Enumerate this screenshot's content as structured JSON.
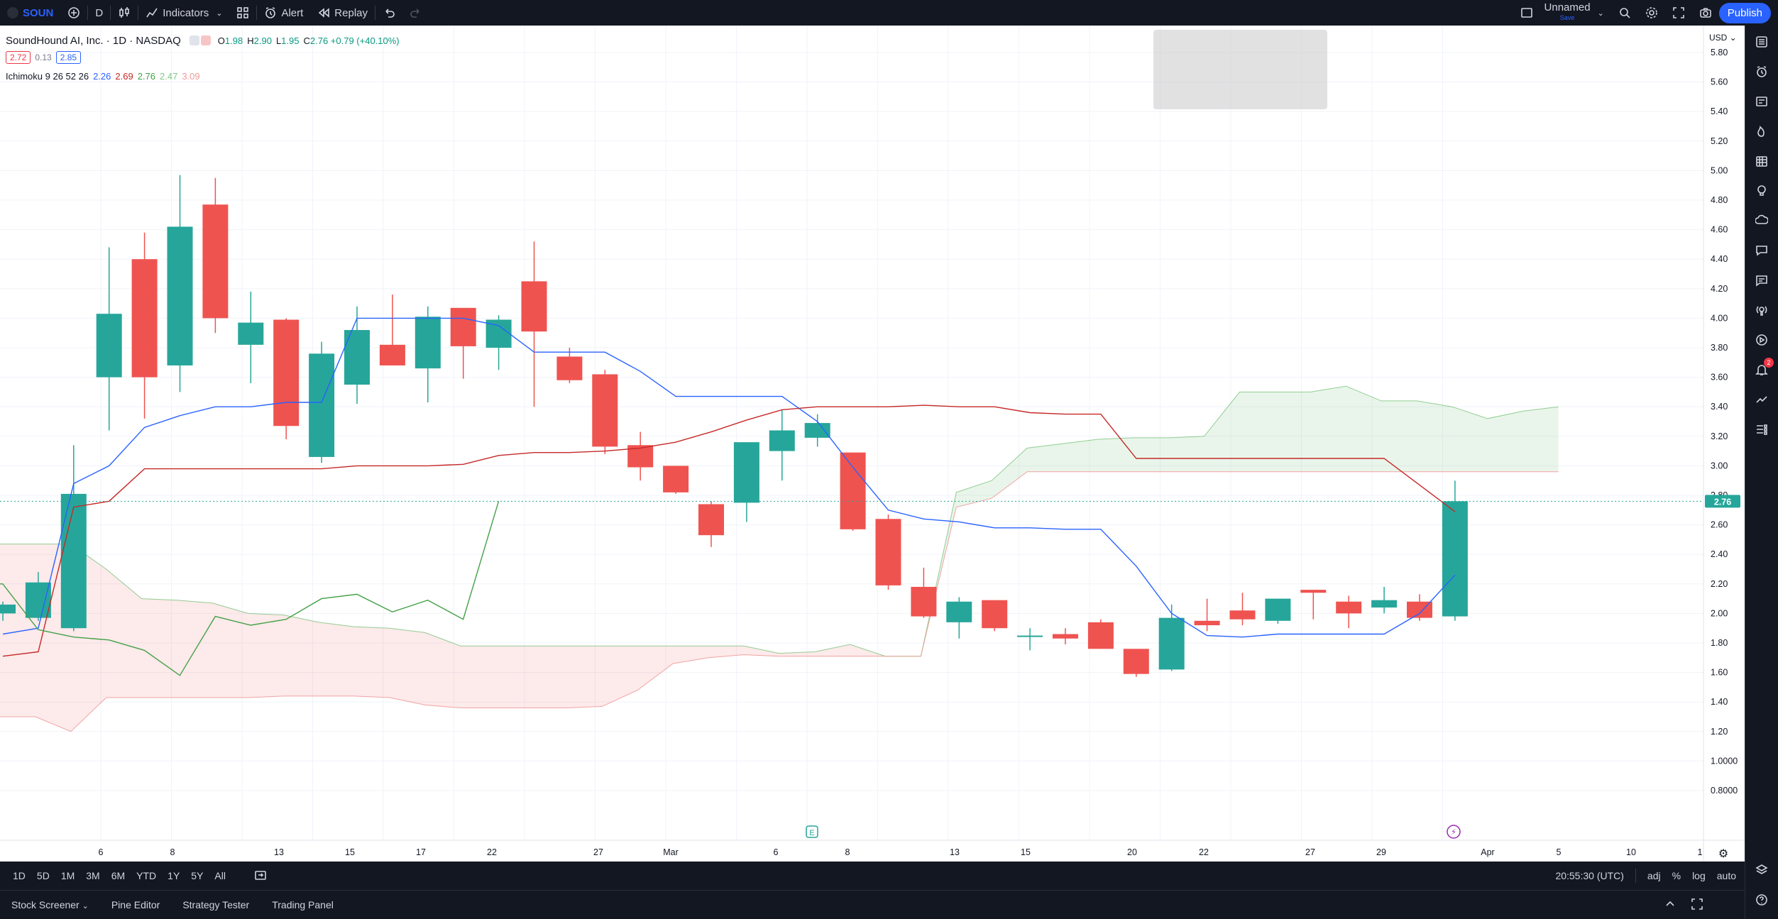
{
  "colors": {
    "bull": "#26a69a",
    "bear": "#ef5350",
    "tenkan": "#2962ff",
    "kijun": "#c62828",
    "chikou": "#43a047",
    "span_a": "#66bb6a",
    "span_b": "#ef9a9a",
    "accent": "#2962ff",
    "price_label_bg": "#26a69a"
  },
  "topbar": {
    "symbol": "SOUN",
    "interval": "D",
    "indicators_label": "Indicators",
    "alert_label": "Alert",
    "replay_label": "Replay",
    "layout_name": "Unnamed",
    "layout_sub": "Save",
    "publish_label": "Publish"
  },
  "legend": {
    "title": "SoundHound AI, Inc. · 1D · NASDAQ",
    "o_label": "O",
    "o_val": "1.98",
    "h_label": "H",
    "h_val": "2.90",
    "l_label": "L",
    "l_val": "1.95",
    "c_label": "C",
    "c_val": "2.76 +0.79 (+40.10%)",
    "bid": "2.72",
    "spread": "0.13",
    "ask": "2.85",
    "ichimoku_name": "Ichimoku 9 26 52 26",
    "ichi_values": [
      "2.26",
      "2.69",
      "2.76",
      "2.47",
      "3.09"
    ]
  },
  "price_axis": {
    "currency": "USD",
    "ticks": [
      "5.80",
      "5.60",
      "5.40",
      "5.20",
      "5.00",
      "4.80",
      "4.60",
      "4.40",
      "4.20",
      "4.00",
      "3.80",
      "3.60",
      "3.40",
      "3.20",
      "3.00",
      "2.80",
      "2.60",
      "2.40",
      "2.20",
      "2.00",
      "1.80",
      "1.60",
      "1.40",
      "1.20",
      "1.0000",
      "0.8000"
    ],
    "last_price_label": "2.76"
  },
  "time_axis": {
    "labels": [
      "6",
      "8",
      "13",
      "15",
      "17",
      "22",
      "27",
      "Mar",
      "6",
      "8",
      "13",
      "15",
      "20",
      "22",
      "27",
      "29",
      "Apr",
      "5",
      "10",
      "1"
    ]
  },
  "chart_data": {
    "type": "candlestick",
    "title": "SoundHound AI, Inc. · 1D · NASDAQ",
    "ylim": [
      0.7,
      5.9
    ],
    "candles": [
      {
        "o": 2.0,
        "h": 2.08,
        "l": 1.95,
        "c": 2.06
      },
      {
        "o": 1.97,
        "h": 2.28,
        "l": 1.95,
        "c": 2.21
      },
      {
        "o": 1.9,
        "h": 3.14,
        "l": 1.88,
        "c": 2.81
      },
      {
        "o": 3.6,
        "h": 4.48,
        "l": 3.24,
        "c": 4.03
      },
      {
        "o": 4.4,
        "h": 4.58,
        "l": 3.32,
        "c": 3.6
      },
      {
        "o": 3.68,
        "h": 4.97,
        "l": 3.5,
        "c": 4.62
      },
      {
        "o": 4.77,
        "h": 4.95,
        "l": 3.9,
        "c": 4.0
      },
      {
        "o": 3.82,
        "h": 4.18,
        "l": 3.56,
        "c": 3.97
      },
      {
        "o": 3.99,
        "h": 4.0,
        "l": 3.18,
        "c": 3.27
      },
      {
        "o": 3.06,
        "h": 3.84,
        "l": 3.02,
        "c": 3.76
      },
      {
        "o": 3.55,
        "h": 4.08,
        "l": 3.42,
        "c": 3.92
      },
      {
        "o": 3.82,
        "h": 4.16,
        "l": 3.68,
        "c": 3.68
      },
      {
        "o": 3.66,
        "h": 4.08,
        "l": 3.43,
        "c": 4.01
      },
      {
        "o": 4.07,
        "h": 4.06,
        "l": 3.59,
        "c": 3.81
      },
      {
        "o": 3.8,
        "h": 4.02,
        "l": 3.65,
        "c": 3.99
      },
      {
        "o": 4.25,
        "h": 4.52,
        "l": 3.4,
        "c": 3.91
      },
      {
        "o": 3.74,
        "h": 3.8,
        "l": 3.56,
        "c": 3.58
      },
      {
        "o": 3.62,
        "h": 3.65,
        "l": 3.08,
        "c": 3.13
      },
      {
        "o": 3.14,
        "h": 3.23,
        "l": 2.9,
        "c": 2.99
      },
      {
        "o": 3.0,
        "h": 3.0,
        "l": 2.81,
        "c": 2.82
      },
      {
        "o": 2.74,
        "h": 2.76,
        "l": 2.45,
        "c": 2.53
      },
      {
        "o": 2.75,
        "h": 3.13,
        "l": 2.62,
        "c": 3.16
      },
      {
        "o": 3.1,
        "h": 3.38,
        "l": 2.9,
        "c": 3.24
      },
      {
        "o": 3.19,
        "h": 3.35,
        "l": 3.13,
        "c": 3.29
      },
      {
        "o": 3.09,
        "h": 3.09,
        "l": 2.56,
        "c": 2.57
      },
      {
        "o": 2.64,
        "h": 2.67,
        "l": 2.16,
        "c": 2.19
      },
      {
        "o": 2.18,
        "h": 2.31,
        "l": 1.97,
        "c": 1.98
      },
      {
        "o": 1.94,
        "h": 2.11,
        "l": 1.83,
        "c": 2.08
      },
      {
        "o": 2.09,
        "h": 2.09,
        "l": 1.88,
        "c": 1.9
      },
      {
        "o": 1.85,
        "h": 1.9,
        "l": 1.75,
        "c": 1.85
      },
      {
        "o": 1.86,
        "h": 1.9,
        "l": 1.79,
        "c": 1.83
      },
      {
        "o": 1.94,
        "h": 1.96,
        "l": 1.76,
        "c": 1.76
      },
      {
        "o": 1.76,
        "h": 1.75,
        "l": 1.57,
        "c": 1.59
      },
      {
        "o": 1.62,
        "h": 2.06,
        "l": 1.61,
        "c": 1.97
      },
      {
        "o": 1.95,
        "h": 2.1,
        "l": 1.88,
        "c": 1.92
      },
      {
        "o": 2.02,
        "h": 2.14,
        "l": 1.92,
        "c": 1.96
      },
      {
        "o": 1.95,
        "h": 2.1,
        "l": 1.93,
        "c": 2.1
      },
      {
        "o": 2.16,
        "h": 2.16,
        "l": 1.96,
        "c": 2.14
      },
      {
        "o": 2.08,
        "h": 2.12,
        "l": 1.9,
        "c": 2.0
      },
      {
        "o": 2.04,
        "h": 2.18,
        "l": 2.0,
        "c": 2.09
      },
      {
        "o": 2.08,
        "h": 2.13,
        "l": 1.95,
        "c": 1.97
      },
      {
        "o": 1.98,
        "h": 2.9,
        "l": 1.95,
        "c": 2.76
      }
    ],
    "tenkan": [
      [
        0,
        1.86
      ],
      [
        1,
        1.9
      ],
      [
        2,
        2.88
      ],
      [
        3,
        3.0
      ],
      [
        4,
        3.26
      ],
      [
        5,
        3.34
      ],
      [
        6,
        3.4
      ],
      [
        7,
        3.4
      ],
      [
        8,
        3.43
      ],
      [
        9,
        3.43
      ],
      [
        10,
        4.0
      ],
      [
        11,
        4.0
      ],
      [
        12,
        4.0
      ],
      [
        13,
        4.0
      ],
      [
        14,
        3.95
      ],
      [
        15,
        3.77
      ],
      [
        16,
        3.77
      ],
      [
        17,
        3.77
      ],
      [
        18,
        3.64
      ],
      [
        19,
        3.47
      ],
      [
        20,
        3.47
      ],
      [
        21,
        3.47
      ],
      [
        22,
        3.47
      ],
      [
        23,
        3.3
      ],
      [
        24,
        2.99
      ],
      [
        25,
        2.7
      ],
      [
        26,
        2.64
      ],
      [
        27,
        2.62
      ],
      [
        28,
        2.58
      ],
      [
        29,
        2.58
      ],
      [
        30,
        2.57
      ],
      [
        31,
        2.57
      ],
      [
        32,
        2.32
      ],
      [
        33,
        2.0
      ],
      [
        34,
        1.85
      ],
      [
        35,
        1.84
      ],
      [
        36,
        1.86
      ],
      [
        37,
        1.86
      ],
      [
        38,
        1.86
      ],
      [
        39,
        1.86
      ],
      [
        40,
        2.0
      ],
      [
        41,
        2.26
      ]
    ],
    "kijun": [
      [
        0,
        1.71
      ],
      [
        1,
        1.74
      ],
      [
        2,
        2.72
      ],
      [
        3,
        2.76
      ],
      [
        4,
        2.98
      ],
      [
        5,
        2.98
      ],
      [
        6,
        2.98
      ],
      [
        7,
        2.98
      ],
      [
        8,
        2.98
      ],
      [
        9,
        2.98
      ],
      [
        10,
        3.0
      ],
      [
        11,
        3.0
      ],
      [
        12,
        3.0
      ],
      [
        13,
        3.01
      ],
      [
        14,
        3.07
      ],
      [
        15,
        3.09
      ],
      [
        16,
        3.09
      ],
      [
        17,
        3.1
      ],
      [
        18,
        3.12
      ],
      [
        19,
        3.16
      ],
      [
        20,
        3.23
      ],
      [
        21,
        3.31
      ],
      [
        22,
        3.38
      ],
      [
        23,
        3.4
      ],
      [
        24,
        3.4
      ],
      [
        25,
        3.4
      ],
      [
        26,
        3.41
      ],
      [
        27,
        3.4
      ],
      [
        28,
        3.4
      ],
      [
        29,
        3.36
      ],
      [
        30,
        3.35
      ],
      [
        31,
        3.35
      ],
      [
        32,
        3.05
      ],
      [
        33,
        3.05
      ],
      [
        34,
        3.05
      ],
      [
        35,
        3.05
      ],
      [
        36,
        3.05
      ],
      [
        37,
        3.05
      ],
      [
        38,
        3.05
      ],
      [
        39,
        3.05
      ],
      [
        40,
        2.87
      ],
      [
        41,
        2.69
      ]
    ],
    "chikou": [
      [
        0,
        2.2
      ],
      [
        1,
        2.2
      ],
      [
        2,
        1.89
      ],
      [
        3,
        1.84
      ],
      [
        4,
        1.82
      ],
      [
        5,
        1.75
      ],
      [
        6,
        1.58
      ],
      [
        7,
        1.98
      ],
      [
        8,
        1.92
      ],
      [
        9,
        1.96
      ],
      [
        10,
        2.1
      ],
      [
        11,
        2.13
      ],
      [
        12,
        2.01
      ],
      [
        13,
        2.09
      ],
      [
        14,
        1.96
      ],
      [
        15,
        2.76
      ]
    ],
    "span_a": [
      [
        0,
        2.47
      ],
      [
        1,
        2.47
      ],
      [
        2,
        2.47
      ],
      [
        3,
        2.3
      ],
      [
        4,
        2.1
      ],
      [
        5,
        2.09
      ],
      [
        6,
        2.07
      ],
      [
        7,
        2.0
      ],
      [
        8,
        1.99
      ],
      [
        9,
        1.94
      ],
      [
        10,
        1.91
      ],
      [
        11,
        1.9
      ],
      [
        12,
        1.87
      ],
      [
        13,
        1.78
      ],
      [
        14,
        1.78
      ],
      [
        15,
        1.78
      ],
      [
        16,
        1.78
      ],
      [
        17,
        1.78
      ],
      [
        18,
        1.78
      ],
      [
        19,
        1.78
      ],
      [
        20,
        1.78
      ],
      [
        21,
        1.78
      ],
      [
        22,
        1.73
      ],
      [
        23,
        1.74
      ],
      [
        24,
        1.79
      ],
      [
        25,
        1.71
      ],
      [
        26,
        1.71
      ],
      [
        27,
        2.82
      ],
      [
        28,
        2.9
      ],
      [
        29,
        3.12
      ],
      [
        30,
        3.15
      ],
      [
        31,
        3.18
      ],
      [
        32,
        3.19
      ],
      [
        33,
        3.19
      ],
      [
        34,
        3.2
      ],
      [
        35,
        3.5
      ],
      [
        36,
        3.5
      ],
      [
        37,
        3.5
      ],
      [
        38,
        3.54
      ],
      [
        39,
        3.44
      ],
      [
        40,
        3.44
      ],
      [
        41,
        3.4
      ],
      [
        42,
        3.32
      ],
      [
        43,
        3.37
      ],
      [
        44,
        3.4
      ]
    ],
    "span_b": [
      [
        0,
        1.3
      ],
      [
        1,
        1.3
      ],
      [
        2,
        1.2
      ],
      [
        3,
        1.43
      ],
      [
        4,
        1.43
      ],
      [
        5,
        1.43
      ],
      [
        6,
        1.43
      ],
      [
        7,
        1.43
      ],
      [
        8,
        1.44
      ],
      [
        9,
        1.44
      ],
      [
        10,
        1.44
      ],
      [
        11,
        1.43
      ],
      [
        12,
        1.38
      ],
      [
        13,
        1.36
      ],
      [
        14,
        1.36
      ],
      [
        15,
        1.36
      ],
      [
        16,
        1.36
      ],
      [
        17,
        1.37
      ],
      [
        18,
        1.48
      ],
      [
        19,
        1.66
      ],
      [
        20,
        1.7
      ],
      [
        21,
        1.72
      ],
      [
        22,
        1.71
      ],
      [
        23,
        1.71
      ],
      [
        24,
        1.71
      ],
      [
        25,
        1.71
      ],
      [
        26,
        1.71
      ],
      [
        27,
        2.72
      ],
      [
        28,
        2.78
      ],
      [
        29,
        2.96
      ],
      [
        30,
        2.96
      ],
      [
        31,
        2.96
      ],
      [
        32,
        2.96
      ],
      [
        33,
        2.96
      ],
      [
        34,
        2.96
      ],
      [
        35,
        2.96
      ],
      [
        36,
        2.96
      ],
      [
        37,
        2.96
      ],
      [
        38,
        2.96
      ],
      [
        39,
        2.96
      ],
      [
        40,
        2.96
      ],
      [
        41,
        2.96
      ],
      [
        42,
        2.96
      ],
      [
        43,
        2.96
      ],
      [
        44,
        2.96
      ]
    ]
  },
  "markers": {
    "earnings": "E",
    "dividend": "⚡"
  },
  "range_bar": {
    "ranges": [
      "1D",
      "5D",
      "1M",
      "3M",
      "6M",
      "YTD",
      "1Y",
      "5Y",
      "All"
    ],
    "time": "20:55:30 (UTC)",
    "adj": "adj",
    "pct": "%",
    "log": "log",
    "auto": "auto"
  },
  "panels": [
    "Stock Screener",
    "Pine Editor",
    "Strategy Tester",
    "Trading Panel"
  ],
  "right_toolbar": {
    "icons": [
      "watchlist-icon",
      "alarm-clock-icon",
      "details-icon",
      "flame-icon",
      "calendar-grid-icon",
      "idea-bulb-icon",
      "chat-cloud-icon",
      "chat-bubble-icon",
      "messages-icon",
      "streams-icon",
      "broadcast-icon",
      "notifications-icon",
      "trend-icon",
      "order-panel-icon"
    ],
    "notification_count": "2"
  }
}
